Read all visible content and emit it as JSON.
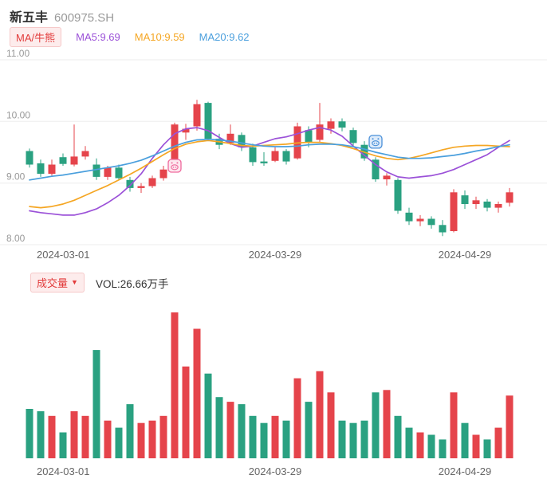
{
  "header": {
    "name": "新五丰",
    "code": "600975.SH"
  },
  "legend": {
    "toggle_label": "MA/牛熊",
    "ma5": "MA5:9.69",
    "ma10": "MA10:9.59",
    "ma20": "MA20:9.62"
  },
  "volume_header": {
    "label": "成交量",
    "dropdown_icon": "▼",
    "value": "VOL:26.66万手"
  },
  "colors": {
    "up": "#e5444b",
    "down": "#2aa181",
    "ma5": "#9b51d8",
    "ma10": "#f5a623",
    "ma20": "#4a9fdd",
    "grid": "#ededed",
    "axis_text": "#999999",
    "buy_marker": "#ef6a9e",
    "buy_marker_bg": "#fde7ee",
    "sell_marker": "#4a90d9",
    "sell_marker_bg": "#ddebfa"
  },
  "chart_data": [
    {
      "type": "candlestick",
      "ylim": [
        8.0,
        11.0
      ],
      "y_gridline_values": [
        11,
        10,
        9,
        8
      ],
      "y_ticks": [
        "11.00",
        "10.00",
        "9.00",
        "8.00"
      ],
      "x_ticks": [
        "2024-03-01",
        "2024-03-29",
        "2024-04-29"
      ],
      "grid": true,
      "legend_position": "top",
      "dates": [
        "2024-03-01",
        "2024-03-04",
        "2024-03-05",
        "2024-03-06",
        "2024-03-07",
        "2024-03-08",
        "2024-03-11",
        "2024-03-12",
        "2024-03-13",
        "2024-03-14",
        "2024-03-15",
        "2024-03-18",
        "2024-03-19",
        "2024-03-20",
        "2024-03-21",
        "2024-03-22",
        "2024-03-25",
        "2024-03-26",
        "2024-03-27",
        "2024-03-28",
        "2024-03-29",
        "2024-04-01",
        "2024-04-02",
        "2024-04-03",
        "2024-04-08",
        "2024-04-09",
        "2024-04-10",
        "2024-04-11",
        "2024-04-12",
        "2024-04-15",
        "2024-04-16",
        "2024-04-17",
        "2024-04-18",
        "2024-04-19",
        "2024-04-22",
        "2024-04-23",
        "2024-04-24",
        "2024-04-25",
        "2024-04-26",
        "2024-04-29",
        "2024-04-30",
        "2024-05-06",
        "2024-05-07",
        "2024-05-08"
      ],
      "ohlc": [
        [
          9.52,
          9.56,
          9.25,
          9.3
        ],
        [
          9.32,
          9.38,
          9.1,
          9.15
        ],
        [
          9.15,
          9.38,
          9.12,
          9.3
        ],
        [
          9.42,
          9.48,
          9.28,
          9.31
        ],
        [
          9.3,
          9.95,
          9.27,
          9.43
        ],
        [
          9.43,
          9.6,
          9.38,
          9.52
        ],
        [
          9.3,
          9.4,
          9.05,
          9.1
        ],
        [
          9.1,
          9.28,
          9.05,
          9.25
        ],
        [
          9.25,
          9.3,
          9.05,
          9.08
        ],
        [
          9.05,
          9.1,
          8.86,
          8.92
        ],
        [
          8.92,
          9.0,
          8.84,
          8.95
        ],
        [
          8.95,
          9.12,
          8.92,
          9.08
        ],
        [
          9.08,
          9.28,
          9.04,
          9.22
        ],
        [
          9.25,
          9.98,
          9.22,
          9.95
        ],
        [
          9.82,
          9.96,
          9.7,
          9.88
        ],
        [
          9.92,
          10.35,
          9.85,
          10.28
        ],
        [
          10.3,
          10.32,
          9.68,
          9.72
        ],
        [
          9.72,
          9.8,
          9.55,
          9.62
        ],
        [
          9.65,
          9.95,
          9.62,
          9.8
        ],
        [
          9.78,
          9.82,
          9.52,
          9.58
        ],
        [
          9.58,
          9.64,
          9.28,
          9.34
        ],
        [
          9.35,
          9.5,
          9.28,
          9.32
        ],
        [
          9.36,
          9.58,
          9.34,
          9.52
        ],
        [
          9.52,
          9.55,
          9.3,
          9.35
        ],
        [
          9.4,
          9.98,
          9.38,
          9.92
        ],
        [
          9.86,
          9.92,
          9.58,
          9.65
        ],
        [
          9.7,
          10.3,
          9.66,
          9.95
        ],
        [
          9.88,
          10.05,
          9.8,
          10.0
        ],
        [
          10.0,
          10.05,
          9.84,
          9.9
        ],
        [
          9.86,
          9.9,
          9.6,
          9.65
        ],
        [
          9.62,
          9.68,
          9.36,
          9.4
        ],
        [
          9.38,
          9.42,
          9.02,
          9.06
        ],
        [
          9.06,
          9.16,
          8.96,
          9.12
        ],
        [
          9.05,
          9.08,
          8.5,
          8.55
        ],
        [
          8.52,
          8.6,
          8.32,
          8.38
        ],
        [
          8.38,
          8.48,
          8.3,
          8.42
        ],
        [
          8.42,
          8.46,
          8.26,
          8.32
        ],
        [
          8.32,
          8.4,
          8.14,
          8.2
        ],
        [
          8.22,
          8.9,
          8.2,
          8.85
        ],
        [
          8.8,
          8.88,
          8.58,
          8.66
        ],
        [
          8.66,
          8.78,
          8.58,
          8.72
        ],
        [
          8.7,
          8.74,
          8.54,
          8.6
        ],
        [
          8.6,
          8.7,
          8.52,
          8.66
        ],
        [
          8.68,
          8.92,
          8.62,
          8.85
        ]
      ],
      "series": [
        {
          "name": "MA5",
          "color": "#9b51d8",
          "values": [
            8.55,
            8.52,
            8.5,
            8.48,
            8.48,
            8.52,
            8.58,
            8.68,
            8.8,
            8.96,
            9.15,
            9.4,
            9.62,
            9.8,
            9.88,
            9.9,
            9.85,
            9.74,
            9.64,
            9.58,
            9.6,
            9.66,
            9.72,
            9.75,
            9.8,
            9.86,
            9.9,
            9.86,
            9.76,
            9.6,
            9.45,
            9.3,
            9.18,
            9.1,
            9.08,
            9.1,
            9.12,
            9.16,
            9.22,
            9.3,
            9.38,
            9.46,
            9.58,
            9.69
          ]
        },
        {
          "name": "MA10",
          "color": "#f5a623",
          "values": [
            8.62,
            8.6,
            8.62,
            8.66,
            8.72,
            8.8,
            8.88,
            8.96,
            9.05,
            9.14,
            9.24,
            9.35,
            9.46,
            9.56,
            9.63,
            9.67,
            9.69,
            9.67,
            9.64,
            9.61,
            9.6,
            9.61,
            9.62,
            9.63,
            9.65,
            9.66,
            9.66,
            9.64,
            9.61,
            9.56,
            9.5,
            9.44,
            9.4,
            9.38,
            9.4,
            9.44,
            9.49,
            9.54,
            9.58,
            9.6,
            9.61,
            9.61,
            9.6,
            9.59
          ]
        },
        {
          "name": "MA20",
          "color": "#4a9fdd",
          "values": [
            9.05,
            9.08,
            9.11,
            9.13,
            9.16,
            9.19,
            9.22,
            9.25,
            9.28,
            9.32,
            9.37,
            9.44,
            9.52,
            9.6,
            9.66,
            9.7,
            9.71,
            9.7,
            9.68,
            9.65,
            9.62,
            9.6,
            9.59,
            9.59,
            9.6,
            9.62,
            9.63,
            9.63,
            9.62,
            9.59,
            9.55,
            9.5,
            9.46,
            9.42,
            9.4,
            9.4,
            9.41,
            9.43,
            9.45,
            9.48,
            9.52,
            9.55,
            9.59,
            9.62
          ]
        }
      ],
      "markers": [
        {
          "index": 13,
          "price": 9.28,
          "type": "buy"
        },
        {
          "index": 31,
          "price": 9.67,
          "type": "sell"
        }
      ]
    },
    {
      "type": "bar",
      "name": "成交量",
      "unit": "万手",
      "ylim": [
        0,
        65
      ],
      "latest_value": 26.66,
      "x_ticks": [
        "2024-03-01",
        "2024-03-29",
        "2024-04-29"
      ],
      "values": [
        21,
        20,
        18,
        11,
        20,
        18,
        46,
        16,
        13,
        23,
        15,
        16,
        18,
        62,
        39,
        55,
        36,
        26,
        24,
        23,
        18,
        15,
        18,
        16,
        34,
        24,
        37,
        28,
        16,
        15,
        16,
        28,
        29,
        18,
        13,
        11,
        10,
        8,
        28,
        15,
        10,
        8,
        13,
        26.66
      ]
    }
  ]
}
